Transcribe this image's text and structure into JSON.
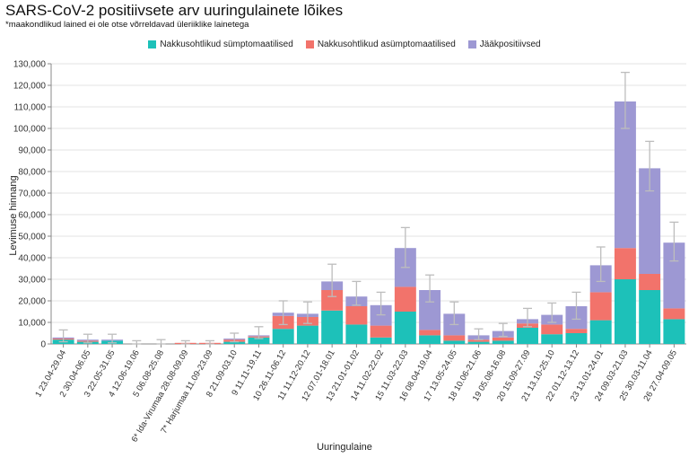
{
  "chart_data": {
    "type": "bar",
    "stacked": true,
    "title": "SARS-CoV-2 positiivsete arv uuringulainete lõikes",
    "subtitle": "*maakondlikud lained ei ole otse võrreldavad üleriiklike lainetega",
    "xlabel": "Uuringulaine",
    "ylabel": "Levimuse hinnang",
    "ylim": [
      0,
      130000
    ],
    "yticks": [
      "0",
      "10,000",
      "20,000",
      "30,000",
      "40,000",
      "50,000",
      "60,000",
      "70,000",
      "80,000",
      "90,000",
      "100,000",
      "110,000",
      "120,000",
      "130,000"
    ],
    "categories": [
      "1 23.04-29.04",
      "2 30.04-06.05",
      "3 22.05-31.05",
      "4 12.06-19.06",
      "5 06.08-25.08",
      "6* Ida-Virumaa 28.08-09.09",
      "7* Harjumaa 11.09-23.09",
      "8 21.09-03.10",
      "9 11.11-19.11",
      "10 26.11-06.12",
      "11 11.12-20.12",
      "12 07.01-18.01",
      "13 21.01-01.02",
      "14 11.02-22.02",
      "15 11.03-22.03",
      "16 08.04-19.04",
      "17 13.05-24.05",
      "18 10.06-21.06",
      "19 05.08-16.08",
      "20 15.09-27.09",
      "21 13.10-25.10",
      "22 01.12-13.12",
      "23 13.01-24.01",
      "24 09.03-21.03",
      "25 30.03-11.04",
      "26 27.04-09.05"
    ],
    "series": [
      {
        "name": "Nakkusohtlikud sümptomaatilised",
        "color": "#1dc1b9",
        "values": [
          2000,
          1000,
          1500,
          0,
          0,
          0,
          0,
          1000,
          3000,
          7000,
          8500,
          15500,
          9000,
          3000,
          15000,
          4000,
          1500,
          1000,
          1500,
          7500,
          4500,
          5000,
          11000,
          30000,
          25000,
          11500
        ]
      },
      {
        "name": "Nakkusohtlikud asümptomaatilised",
        "color": "#f2736b",
        "values": [
          500,
          500,
          0,
          0,
          0,
          500,
          500,
          1000,
          500,
          6000,
          4000,
          9500,
          8500,
          5500,
          11500,
          2500,
          2500,
          1000,
          1500,
          2000,
          4500,
          2000,
          13000,
          14500,
          7500,
          5000
        ]
      },
      {
        "name": "Jääkpositiivsed",
        "color": "#9d98d3",
        "values": [
          500,
          500,
          500,
          0,
          0,
          0,
          0,
          500,
          500,
          1500,
          1500,
          4000,
          4500,
          9500,
          18000,
          18500,
          10000,
          2000,
          3000,
          2000,
          4500,
          10500,
          12500,
          68000,
          49000,
          30500
        ]
      }
    ],
    "error_bars": {
      "color": "#bdbdbd",
      "low": [
        1000,
        500,
        500,
        0,
        0,
        0,
        0,
        1000,
        2500,
        9000,
        9500,
        22000,
        18000,
        13500,
        35500,
        19500,
        9000,
        2000,
        3500,
        8000,
        10000,
        11500,
        29000,
        100000,
        71000,
        38500
      ],
      "high": [
        6500,
        4500,
        4500,
        1500,
        2000,
        1500,
        1500,
        5000,
        8000,
        20000,
        19500,
        37000,
        29000,
        24000,
        54000,
        32000,
        19500,
        7000,
        9500,
        16500,
        19000,
        24000,
        45000,
        126000,
        94000,
        56500
      ]
    }
  }
}
